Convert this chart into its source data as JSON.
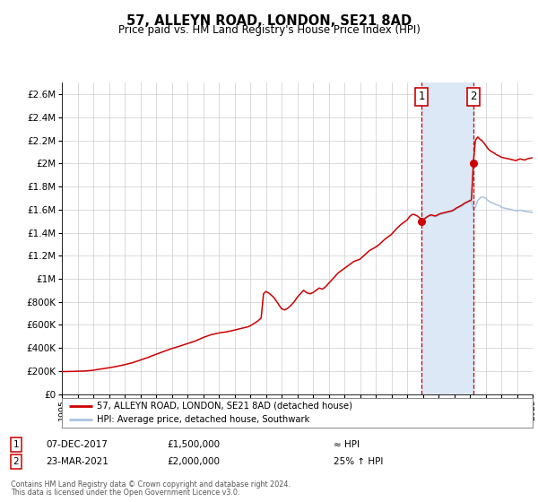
{
  "title": "57, ALLEYN ROAD, LONDON, SE21 8AD",
  "subtitle": "Price paid vs. HM Land Registry's House Price Index (HPI)",
  "legend_line1": "57, ALLEYN ROAD, LONDON, SE21 8AD (detached house)",
  "legend_line2": "HPI: Average price, detached house, Southwark",
  "annotation1_date": "07-DEC-2017",
  "annotation1_price": "£1,500,000",
  "annotation1_hpi": "≈ HPI",
  "annotation2_date": "23-MAR-2021",
  "annotation2_price": "£2,000,000",
  "annotation2_hpi": "25% ↑ HPI",
  "footer1": "Contains HM Land Registry data © Crown copyright and database right 2024.",
  "footer2": "This data is licensed under the Open Government Licence v3.0.",
  "hpi_color": "#a8c4e0",
  "price_color": "#cc0000",
  "vline_color": "#cc0000",
  "shade_color": "#dce8f5",
  "background_color": "#ffffff",
  "grid_color": "#cccccc",
  "ylim_max": 2700000,
  "xlim_start": 1995.0,
  "xlim_end": 2025.0,
  "sale1_x": 2017.92,
  "sale1_y": 1500000,
  "sale2_x": 2021.22,
  "sale2_y": 2000000,
  "yticks": [
    0,
    200000,
    400000,
    600000,
    800000,
    1000000,
    1200000,
    1400000,
    1600000,
    1800000,
    2000000,
    2200000,
    2400000,
    2600000
  ]
}
